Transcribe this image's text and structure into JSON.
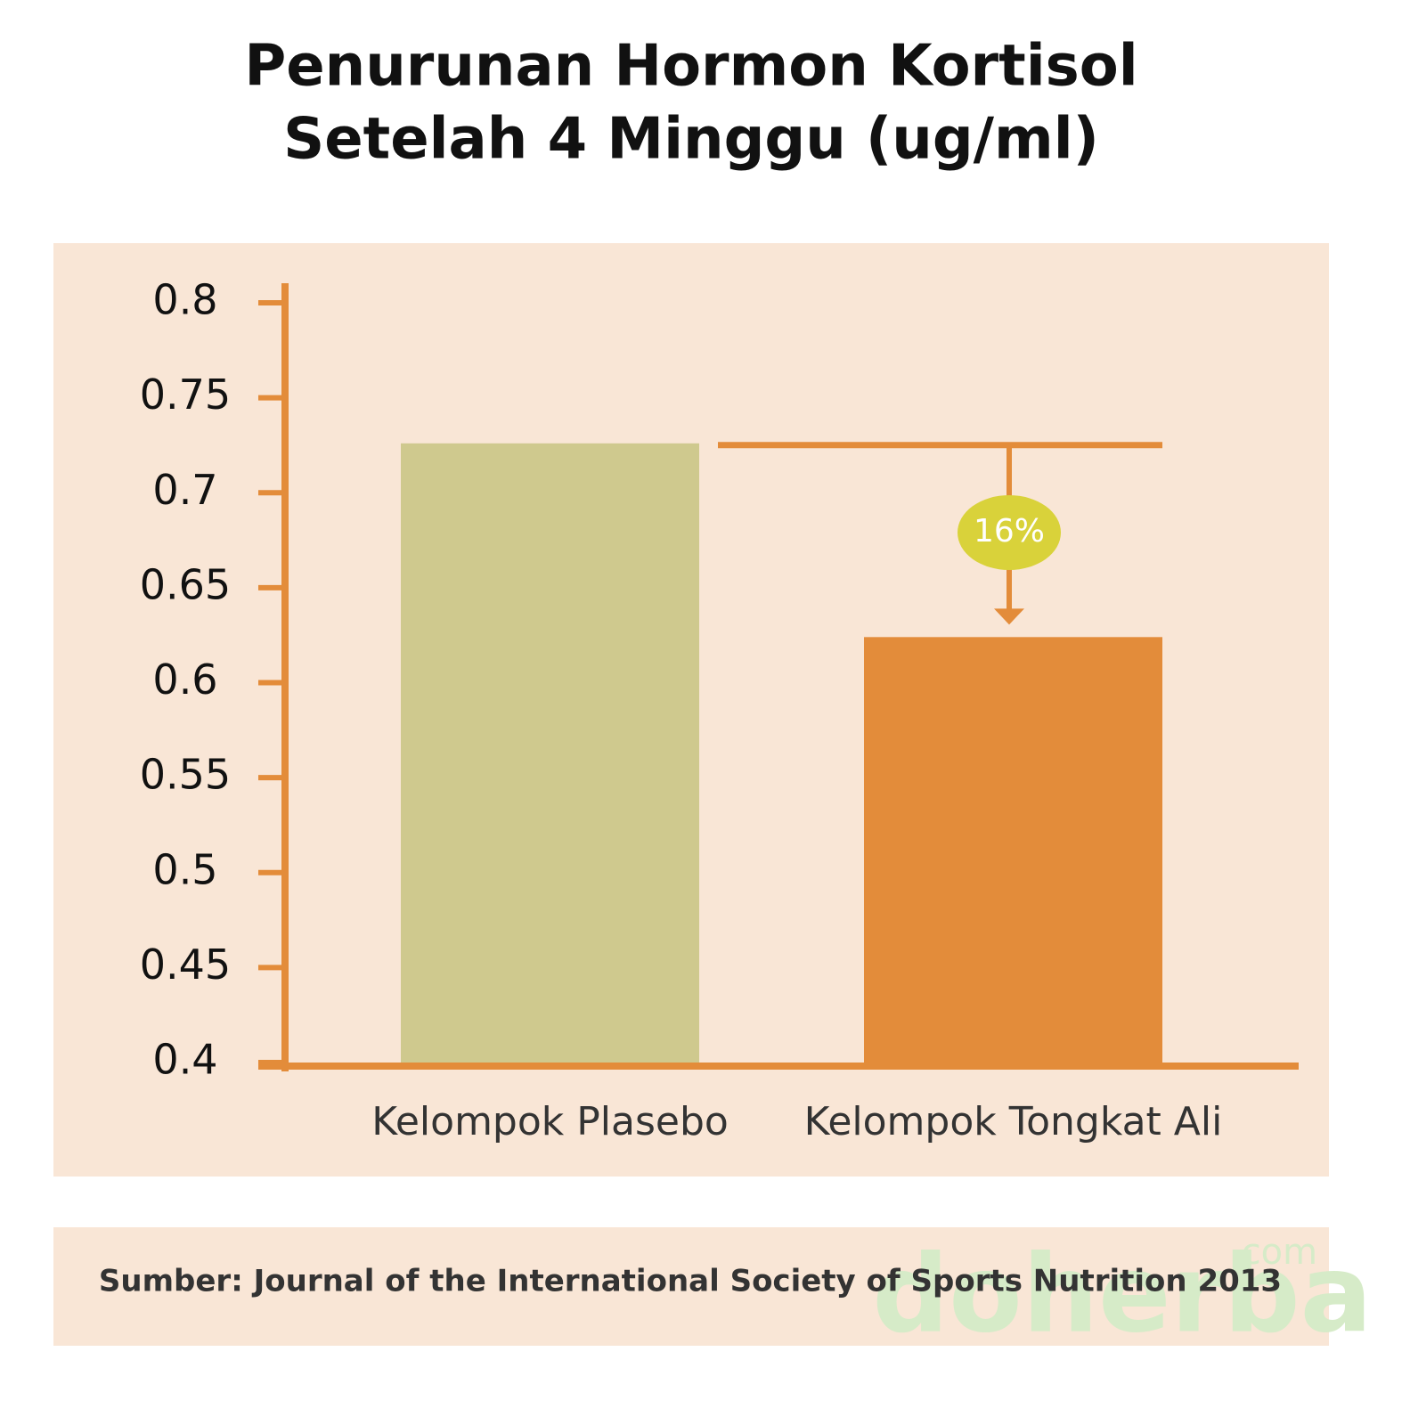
{
  "chart_data": {
    "type": "bar",
    "title": [
      "Penurunan Hormon Kortisol",
      "Setelah 4 Minggu (ug/ml)"
    ],
    "categories": [
      "Kelompok Plasebo",
      "Kelompok Tongkat Ali"
    ],
    "values": [
      0.726,
      0.624
    ],
    "colors": [
      "#cfc98e",
      "#e38c3a"
    ],
    "axis_color": "#e38c3a",
    "ylim": [
      0.4,
      0.8
    ],
    "yticks": [
      0.4,
      0.45,
      0.5,
      0.55,
      0.6,
      0.65,
      0.7,
      0.75,
      0.8
    ],
    "annotation": "16%",
    "source": "Sumber: Journal of the International Society of Sports Nutrition 2013",
    "watermark": "doherba",
    "watermark_suffix": ".com"
  }
}
